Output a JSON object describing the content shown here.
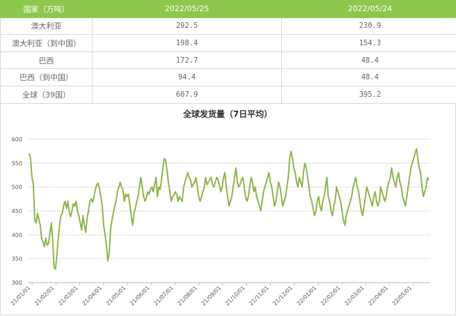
{
  "table": {
    "headers": [
      "国家（万吨）",
      "2022/05/25",
      "2022/05/24"
    ],
    "rows": [
      {
        "name": "澳大利亚",
        "v1": "292.5",
        "v2": "230.9"
      },
      {
        "name": "澳大利亚（到中国）",
        "v1": "198.4",
        "v2": "154.3"
      },
      {
        "name": "巴西",
        "v1": "172.7",
        "v2": "48.4"
      },
      {
        "name": "巴西（到中国）",
        "v1": "94.4",
        "v2": "48.4"
      },
      {
        "name": "全球（39国）",
        "v1": "607.9",
        "v2": "395.2"
      }
    ]
  },
  "colors": {
    "header_bg": "#8cc84b",
    "line": "#8db548",
    "grid": "#e0e0e0"
  },
  "chart_data": {
    "type": "line",
    "title": "全球发货量（7日平均）",
    "xlabel": "",
    "ylabel": "",
    "ylim": [
      300,
      600
    ],
    "yticks": [
      300,
      350,
      400,
      450,
      500,
      550,
      600
    ],
    "x_ticks": [
      "21/01/01",
      "21/02/01",
      "21/03/01",
      "21/04/01",
      "21/05/01",
      "21/06/01",
      "21/07/01",
      "21/08/01",
      "21/09/01",
      "21/10/01",
      "21/11/01",
      "21/12/01",
      "22/01/01",
      "22/02/01",
      "22/03/01",
      "22/04/01",
      "22/05/01"
    ],
    "grid": true,
    "legend": "none",
    "series": [
      {
        "values": [
          570,
          558,
          520,
          505,
          430,
          425,
          445,
          432,
          420,
          392,
          385,
          375,
          393,
          378,
          382,
          402,
          425,
          390,
          332,
          328,
          355,
          390,
          420,
          440,
          445,
          462,
          470,
          455,
          470,
          448,
          438,
          450,
          465,
          460,
          470,
          450,
          440,
          425,
          410,
          440,
          420,
          405,
          435,
          450,
          470,
          475,
          468,
          480,
          495,
          505,
          508,
          495,
          480,
          460,
          420,
          400,
          380,
          345,
          360,
          410,
          430,
          445,
          460,
          470,
          490,
          500,
          510,
          500,
          495,
          470,
          485,
          480,
          485,
          462,
          440,
          420,
          445,
          455,
          470,
          480,
          500,
          520,
          500,
          480,
          470,
          478,
          490,
          485,
          495,
          500,
          490,
          505,
          520,
          480,
          500,
          495,
          515,
          540,
          560,
          555,
          535,
          510,
          490,
          470,
          480,
          482,
          490,
          485,
          470,
          480,
          475,
          470,
          500,
          510,
          520,
          530,
          520,
          515,
          500,
          505,
          510,
          520,
          500,
          480,
          470,
          480,
          490,
          500,
          520,
          505,
          510,
          515,
          520,
          505,
          500,
          510,
          520,
          515,
          505,
          490,
          500,
          520,
          530,
          500,
          480,
          460,
          470,
          480,
          500,
          520,
          540,
          510,
          500,
          505,
          515,
          520,
          500,
          480,
          470,
          480,
          500,
          520,
          510,
          490,
          500,
          480,
          470,
          460,
          450,
          470,
          490,
          500,
          510,
          520,
          530,
          510,
          500,
          480,
          460,
          470,
          490,
          510,
          500,
          480,
          460,
          470,
          480,
          500,
          520,
          560,
          575,
          560,
          540,
          530,
          510,
          500,
          520,
          510,
          500,
          530,
          550,
          540,
          520,
          500,
          480,
          470,
          455,
          440,
          450,
          470,
          480,
          460,
          450,
          470,
          480,
          500,
          520,
          480,
          470,
          450,
          440,
          460,
          470,
          500,
          490,
          480,
          470,
          450,
          430,
          420,
          440,
          450,
          460,
          470,
          480,
          500,
          510,
          520,
          500,
          490,
          470,
          450,
          440,
          460,
          480,
          500,
          490,
          480,
          470,
          460,
          480,
          490,
          470,
          460,
          470,
          500,
          490,
          480,
          470,
          480,
          500,
          510,
          520,
          540,
          520,
          510,
          500,
          520,
          530,
          510,
          500,
          480,
          470,
          460,
          480,
          500,
          520,
          540,
          550,
          560,
          570,
          580,
          560,
          540,
          530,
          500,
          480,
          490,
          500,
          520,
          515
        ]
      }
    ]
  }
}
